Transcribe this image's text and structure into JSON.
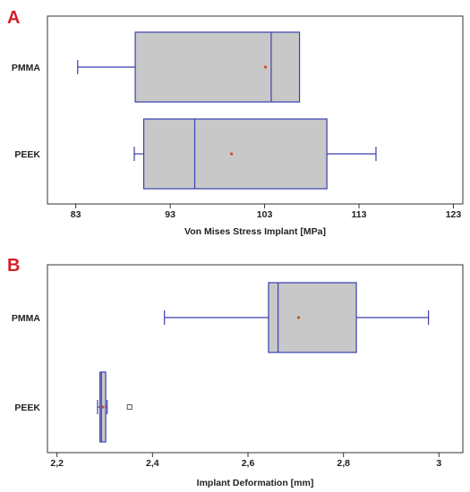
{
  "colors": {
    "panel_letter": "#d42027",
    "frame": "#333333",
    "box_fill": "#c8c8c8",
    "box_stroke": "#3a3fb0",
    "mean_marker": "#c8501e"
  },
  "chart_data": [
    {
      "type": "boxplot",
      "panel_label": "A",
      "xlabel": "Von Mises Stress Implant [MPa]",
      "xlim": [
        80,
        124
      ],
      "xticks": [
        83,
        93,
        103,
        113,
        123
      ],
      "xtick_labels": [
        "83",
        "93",
        "103",
        "113",
        "123"
      ],
      "grid": false,
      "categories": [
        "PMMA",
        "PEEK"
      ],
      "boxes": [
        {
          "name": "PMMA",
          "whisker_low": 83.2,
          "q1": 89.3,
          "median": 103.7,
          "q3": 106.7,
          "whisker_high": 106.7,
          "mean": 103.1,
          "outliers": []
        },
        {
          "name": "PEEK",
          "whisker_low": 89.2,
          "q1": 90.2,
          "median": 95.6,
          "q3": 109.6,
          "whisker_high": 114.8,
          "mean": 99.5,
          "outliers": []
        }
      ]
    },
    {
      "type": "boxplot",
      "panel_label": "B",
      "xlabel": "Implant Deformation [mm]",
      "xlim": [
        2.18,
        3.05
      ],
      "xticks": [
        2.2,
        2.4,
        2.6,
        2.8,
        3.0
      ],
      "xtick_labels": [
        "2,2",
        "2,4",
        "2,6",
        "2,8",
        "3"
      ],
      "grid": false,
      "categories": [
        "PMMA",
        "PEEK"
      ],
      "boxes": [
        {
          "name": "PMMA",
          "whisker_low": 2.425,
          "q1": 2.643,
          "median": 2.663,
          "q3": 2.827,
          "whisker_high": 2.978,
          "mean": 2.706,
          "outliers": []
        },
        {
          "name": "PEEK",
          "whisker_low": 2.285,
          "q1": 2.29,
          "median": 2.293,
          "q3": 2.302,
          "whisker_high": 2.305,
          "mean": 2.296,
          "outliers": [
            2.352
          ]
        }
      ]
    }
  ]
}
